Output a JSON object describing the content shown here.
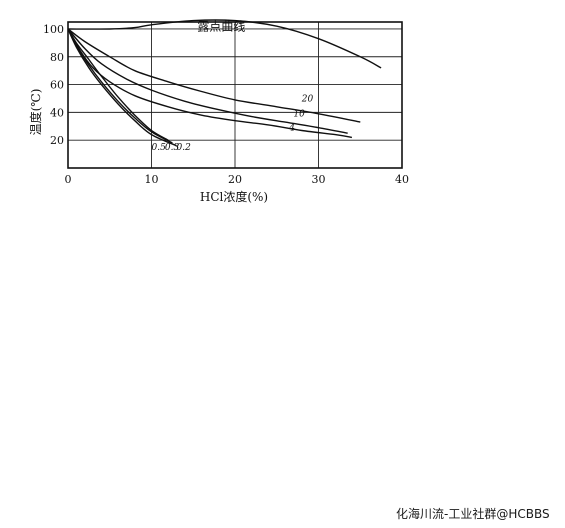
{
  "chart_data": {
    "type": "line",
    "title": "",
    "xlabel": "HCl浓度(%)",
    "ylabel": "温度(℃)",
    "xlim": [
      0,
      40
    ],
    "ylim": [
      0,
      105
    ],
    "xticks": [
      0,
      10,
      20,
      30,
      40
    ],
    "yticks": [
      20,
      40,
      60,
      80,
      100
    ],
    "grid": true,
    "series": [
      {
        "name": "露点曲线",
        "label_at": [
          15.5,
          99
        ],
        "points": [
          [
            0,
            100
          ],
          [
            5,
            100
          ],
          [
            8,
            101
          ],
          [
            10,
            103
          ],
          [
            15,
            106
          ],
          [
            20,
            106
          ],
          [
            25,
            102
          ],
          [
            30,
            93
          ],
          [
            35,
            80
          ],
          [
            37.5,
            72
          ]
        ]
      },
      {
        "name": "20",
        "label_at": [
          28,
          48
        ],
        "points": [
          [
            0,
            100
          ],
          [
            2,
            91
          ],
          [
            5,
            80
          ],
          [
            8,
            70
          ],
          [
            12,
            62
          ],
          [
            16,
            55
          ],
          [
            20,
            49
          ],
          [
            25,
            44
          ],
          [
            30,
            39
          ],
          [
            35,
            33
          ]
        ]
      },
      {
        "name": "10",
        "label_at": [
          27,
          37
        ],
        "points": [
          [
            0,
            100
          ],
          [
            2,
            86
          ],
          [
            4,
            75
          ],
          [
            7,
            64
          ],
          [
            10,
            56
          ],
          [
            14,
            48
          ],
          [
            18,
            42
          ],
          [
            22,
            37
          ],
          [
            26,
            33
          ],
          [
            30,
            29
          ],
          [
            33.5,
            25
          ]
        ]
      },
      {
        "name": "4",
        "label_at": [
          26.5,
          27
        ],
        "points": [
          [
            0,
            100
          ],
          [
            1.5,
            84
          ],
          [
            3,
            72
          ],
          [
            5,
            62
          ],
          [
            8,
            52
          ],
          [
            12,
            44
          ],
          [
            16,
            38
          ],
          [
            20,
            34
          ],
          [
            24,
            31
          ],
          [
            28,
            27
          ],
          [
            32,
            24
          ],
          [
            34,
            22
          ]
        ]
      },
      {
        "name": "0.5",
        "label_at": [
          10,
          13
        ],
        "points": [
          [
            0,
            100
          ],
          [
            1,
            90
          ],
          [
            2.5,
            78
          ],
          [
            4,
            66
          ],
          [
            6,
            51
          ],
          [
            8,
            38
          ],
          [
            10,
            27
          ],
          [
            12,
            20
          ]
        ]
      },
      {
        "name": "0.3",
        "label_at": [
          11.6,
          13
        ],
        "points": [
          [
            0,
            100
          ],
          [
            1,
            88
          ],
          [
            2.5,
            74
          ],
          [
            4,
            62
          ],
          [
            6,
            48
          ],
          [
            8,
            36
          ],
          [
            10,
            26
          ],
          [
            12.5,
            18
          ]
        ]
      },
      {
        "name": "0.2",
        "label_at": [
          13,
          13
        ],
        "points": [
          [
            0,
            100
          ],
          [
            1,
            87
          ],
          [
            2.5,
            72
          ],
          [
            4,
            60
          ],
          [
            6,
            46
          ],
          [
            8,
            34
          ],
          [
            10,
            24
          ],
          [
            13,
            16
          ]
        ]
      }
    ]
  },
  "watermark": "化海川流-工业社群@HCBBS"
}
